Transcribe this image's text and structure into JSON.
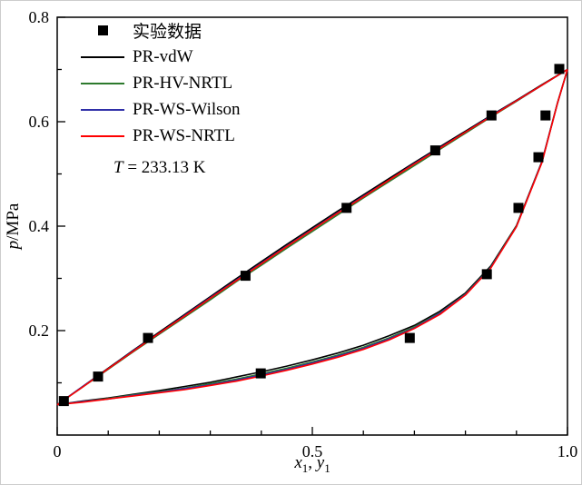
{
  "chart_data": {
    "type": "scatter",
    "title": "",
    "xlabel_parts": {
      "var1": "x",
      "sub1": "1",
      "sep": ", ",
      "var2": "y",
      "sub2": "1"
    },
    "ylabel_parts": {
      "var": "p",
      "rest": "/MPa"
    },
    "annotation_parts": {
      "var": "T",
      "rest": " = 233.13 K"
    },
    "xlim": [
      0,
      1.0
    ],
    "ylim": [
      0,
      0.8
    ],
    "grid": false,
    "legend_position": "top-left-inside",
    "x_ticks": [
      {
        "v": 0,
        "label": "0"
      },
      {
        "v": 0.5,
        "label": "0.5"
      },
      {
        "v": 1.0,
        "label": "1.0"
      }
    ],
    "x_minor_ticks": [
      0.1,
      0.2,
      0.3,
      0.4,
      0.6,
      0.7,
      0.8,
      0.9
    ],
    "y_ticks": [
      {
        "v": 0.2,
        "label": "0.2"
      },
      {
        "v": 0.4,
        "label": "0.4"
      },
      {
        "v": 0.6,
        "label": "0.6"
      },
      {
        "v": 0.8,
        "label": "0.8"
      }
    ],
    "y_minor_ticks": [
      0.1,
      0.3,
      0.5,
      0.7
    ],
    "legend": {
      "items": [
        {
          "label": "实验数据",
          "type": "marker",
          "color": "#000000"
        },
        {
          "label": "PR-vdW",
          "type": "line",
          "color": "#000000"
        },
        {
          "label": "PR-HV-NRTL",
          "type": "line",
          "color": "#2d7a2d"
        },
        {
          "label": "PR-WS-Wilson",
          "type": "line",
          "color": "#2f2fa8"
        },
        {
          "label": "PR-WS-NRTL",
          "type": "line",
          "color": "#ff0000"
        }
      ]
    },
    "experimental": {
      "name": "实验数据",
      "color": "#000000",
      "marker": "square",
      "bubble_points": [
        [
          0.013,
          0.065
        ],
        [
          0.08,
          0.112
        ],
        [
          0.178,
          0.186
        ],
        [
          0.369,
          0.305
        ],
        [
          0.567,
          0.435
        ],
        [
          0.741,
          0.545
        ],
        [
          0.851,
          0.612
        ],
        [
          0.984,
          0.701
        ]
      ],
      "dew_points": [
        [
          0.399,
          0.118
        ],
        [
          0.691,
          0.186
        ],
        [
          0.842,
          0.308
        ],
        [
          0.904,
          0.435
        ],
        [
          0.943,
          0.532
        ],
        [
          0.957,
          0.612
        ]
      ]
    },
    "models": [
      {
        "name": "PR-vdW",
        "color": "#000000",
        "bubble": [
          [
            0,
            0.058
          ],
          [
            0.05,
            0.093
          ],
          [
            0.1,
            0.128
          ],
          [
            0.15,
            0.163
          ],
          [
            0.2,
            0.197
          ],
          [
            0.25,
            0.231
          ],
          [
            0.3,
            0.265
          ],
          [
            0.35,
            0.299
          ],
          [
            0.4,
            0.332
          ],
          [
            0.45,
            0.365
          ],
          [
            0.5,
            0.397
          ],
          [
            0.55,
            0.429
          ],
          [
            0.6,
            0.46
          ],
          [
            0.65,
            0.491
          ],
          [
            0.7,
            0.522
          ],
          [
            0.75,
            0.552
          ],
          [
            0.8,
            0.582
          ],
          [
            0.85,
            0.612
          ],
          [
            0.9,
            0.641
          ],
          [
            0.95,
            0.671
          ],
          [
            1,
            0.7
          ]
        ],
        "dew": [
          [
            0,
            0.058
          ],
          [
            0.05,
            0.065
          ],
          [
            0.1,
            0.071
          ],
          [
            0.15,
            0.078
          ],
          [
            0.2,
            0.085
          ],
          [
            0.25,
            0.093
          ],
          [
            0.3,
            0.101
          ],
          [
            0.35,
            0.111
          ],
          [
            0.4,
            0.121
          ],
          [
            0.45,
            0.132
          ],
          [
            0.5,
            0.144
          ],
          [
            0.55,
            0.157
          ],
          [
            0.6,
            0.172
          ],
          [
            0.65,
            0.19
          ],
          [
            0.7,
            0.21
          ],
          [
            0.75,
            0.237
          ],
          [
            0.8,
            0.272
          ],
          [
            0.85,
            0.324
          ],
          [
            0.9,
            0.401
          ],
          [
            0.95,
            0.524
          ],
          [
            0.98,
            0.635
          ],
          [
            1,
            0.7
          ]
        ]
      },
      {
        "name": "PR-HV-NRTL",
        "color": "#2d7a2d",
        "bubble": [
          [
            0,
            0.058
          ],
          [
            0.05,
            0.092
          ],
          [
            0.1,
            0.126
          ],
          [
            0.15,
            0.16
          ],
          [
            0.2,
            0.193
          ],
          [
            0.25,
            0.226
          ],
          [
            0.3,
            0.259
          ],
          [
            0.35,
            0.293
          ],
          [
            0.4,
            0.325
          ],
          [
            0.45,
            0.358
          ],
          [
            0.5,
            0.39
          ],
          [
            0.55,
            0.422
          ],
          [
            0.6,
            0.454
          ],
          [
            0.65,
            0.485
          ],
          [
            0.7,
            0.516
          ],
          [
            0.75,
            0.547
          ],
          [
            0.8,
            0.578
          ],
          [
            0.85,
            0.609
          ],
          [
            0.9,
            0.639
          ],
          [
            0.95,
            0.67
          ],
          [
            1,
            0.7
          ]
        ],
        "dew": [
          [
            0,
            0.058
          ],
          [
            0.05,
            0.064
          ],
          [
            0.1,
            0.07
          ],
          [
            0.15,
            0.077
          ],
          [
            0.2,
            0.083
          ],
          [
            0.25,
            0.09
          ],
          [
            0.3,
            0.098
          ],
          [
            0.35,
            0.107
          ],
          [
            0.4,
            0.117
          ],
          [
            0.45,
            0.128
          ],
          [
            0.5,
            0.14
          ],
          [
            0.55,
            0.153
          ],
          [
            0.6,
            0.168
          ],
          [
            0.65,
            0.186
          ],
          [
            0.7,
            0.207
          ],
          [
            0.75,
            0.234
          ],
          [
            0.8,
            0.27
          ],
          [
            0.85,
            0.322
          ],
          [
            0.9,
            0.4
          ],
          [
            0.95,
            0.523
          ],
          [
            0.98,
            0.634
          ],
          [
            1,
            0.7
          ]
        ]
      },
      {
        "name": "PR-WS-Wilson",
        "color": "#2f2fa8",
        "bubble": [
          [
            0,
            0.058
          ],
          [
            0.05,
            0.093
          ],
          [
            0.1,
            0.127
          ],
          [
            0.15,
            0.162
          ],
          [
            0.2,
            0.195
          ],
          [
            0.25,
            0.229
          ],
          [
            0.3,
            0.263
          ],
          [
            0.35,
            0.296
          ],
          [
            0.4,
            0.329
          ],
          [
            0.45,
            0.362
          ],
          [
            0.5,
            0.394
          ],
          [
            0.55,
            0.426
          ],
          [
            0.6,
            0.457
          ],
          [
            0.65,
            0.488
          ],
          [
            0.7,
            0.52
          ],
          [
            0.75,
            0.55
          ],
          [
            0.8,
            0.58
          ],
          [
            0.85,
            0.611
          ],
          [
            0.9,
            0.64
          ],
          [
            0.95,
            0.67
          ],
          [
            1,
            0.7
          ]
        ],
        "dew": [
          [
            0,
            0.058
          ],
          [
            0.05,
            0.064
          ],
          [
            0.1,
            0.069
          ],
          [
            0.15,
            0.076
          ],
          [
            0.2,
            0.082
          ],
          [
            0.25,
            0.089
          ],
          [
            0.3,
            0.096
          ],
          [
            0.35,
            0.105
          ],
          [
            0.4,
            0.115
          ],
          [
            0.45,
            0.126
          ],
          [
            0.5,
            0.138
          ],
          [
            0.55,
            0.151
          ],
          [
            0.6,
            0.166
          ],
          [
            0.65,
            0.184
          ],
          [
            0.7,
            0.205
          ],
          [
            0.75,
            0.233
          ],
          [
            0.8,
            0.269
          ],
          [
            0.85,
            0.321
          ],
          [
            0.9,
            0.399
          ],
          [
            0.95,
            0.523
          ],
          [
            0.98,
            0.634
          ],
          [
            1,
            0.7
          ]
        ]
      },
      {
        "name": "PR-WS-NRTL",
        "color": "#ff0000",
        "bubble": [
          [
            0,
            0.058
          ],
          [
            0.05,
            0.092
          ],
          [
            0.1,
            0.127
          ],
          [
            0.15,
            0.161
          ],
          [
            0.2,
            0.195
          ],
          [
            0.25,
            0.228
          ],
          [
            0.3,
            0.262
          ],
          [
            0.35,
            0.295
          ],
          [
            0.4,
            0.328
          ],
          [
            0.45,
            0.361
          ],
          [
            0.5,
            0.393
          ],
          [
            0.55,
            0.425
          ],
          [
            0.6,
            0.456
          ],
          [
            0.65,
            0.488
          ],
          [
            0.7,
            0.519
          ],
          [
            0.75,
            0.549
          ],
          [
            0.8,
            0.58
          ],
          [
            0.85,
            0.61
          ],
          [
            0.9,
            0.64
          ],
          [
            0.95,
            0.67
          ],
          [
            1,
            0.7
          ]
        ],
        "dew": [
          [
            0,
            0.058
          ],
          [
            0.05,
            0.063
          ],
          [
            0.1,
            0.069
          ],
          [
            0.15,
            0.075
          ],
          [
            0.2,
            0.081
          ],
          [
            0.25,
            0.087
          ],
          [
            0.3,
            0.095
          ],
          [
            0.35,
            0.103
          ],
          [
            0.4,
            0.113
          ],
          [
            0.45,
            0.124
          ],
          [
            0.5,
            0.136
          ],
          [
            0.55,
            0.149
          ],
          [
            0.6,
            0.164
          ],
          [
            0.65,
            0.182
          ],
          [
            0.7,
            0.204
          ],
          [
            0.75,
            0.231
          ],
          [
            0.8,
            0.268
          ],
          [
            0.85,
            0.32
          ],
          [
            0.9,
            0.399
          ],
          [
            0.95,
            0.522
          ],
          [
            0.98,
            0.634
          ],
          [
            1,
            0.7
          ]
        ]
      }
    ]
  }
}
